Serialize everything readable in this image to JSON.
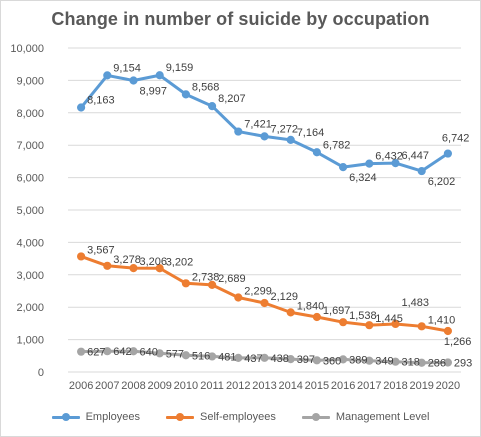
{
  "chart_data": {
    "type": "line",
    "title": "Change in number of suicide by occupation",
    "xlabel": "",
    "ylabel": "",
    "ylim": [
      0,
      10000
    ],
    "yticks": [
      "0",
      "1,000",
      "2,000",
      "3,000",
      "4,000",
      "5,000",
      "6,000",
      "7,000",
      "8,000",
      "9,000",
      "10,000"
    ],
    "ytick_values": [
      0,
      1000,
      2000,
      3000,
      4000,
      5000,
      6000,
      7000,
      8000,
      9000,
      10000
    ],
    "grid": true,
    "legend_position": "bottom",
    "categories": [
      "2006",
      "2007",
      "2008",
      "2009",
      "2010",
      "2011",
      "2012",
      "2013",
      "2014",
      "2015",
      "2016",
      "2017",
      "2018",
      "2019",
      "2020"
    ],
    "series": [
      {
        "name": "Employees",
        "color": "#5b9bd5",
        "values": [
          8163,
          9154,
          8997,
          9159,
          8568,
          8207,
          7421,
          7272,
          7164,
          6782,
          6324,
          6432,
          6447,
          6202,
          6742
        ],
        "labels": [
          "8,163",
          "9,154",
          "8,997",
          "9,159",
          "8,568",
          "8,207",
          "7,421",
          "7,272",
          "7,164",
          "6,782",
          "6,324",
          "6,432",
          "6,447",
          "6,202",
          "6,742"
        ]
      },
      {
        "name": "Self-employees",
        "color": "#ed7d31",
        "values": [
          3567,
          3278,
          3206,
          3202,
          2738,
          2689,
          2299,
          2129,
          1840,
          1697,
          1538,
          1445,
          1483,
          1410,
          1266
        ],
        "labels": [
          "3,567",
          "3,278",
          "3,206",
          "3,202",
          "2,738",
          "2,689",
          "2,299",
          "2,129",
          "1,840",
          "1,697",
          "1,538",
          "1,445",
          "1,483",
          "1,410",
          "1,266"
        ]
      },
      {
        "name": "Management Level",
        "color": "#a5a5a5",
        "values": [
          627,
          642,
          640,
          577,
          516,
          481,
          437,
          438,
          397,
          360,
          389,
          349,
          318,
          286,
          293
        ],
        "labels": [
          "627",
          "642",
          "640",
          "577",
          "516",
          "481",
          "437",
          "438",
          "397",
          "360",
          "389",
          "349",
          "318",
          "286",
          "293"
        ]
      }
    ]
  }
}
